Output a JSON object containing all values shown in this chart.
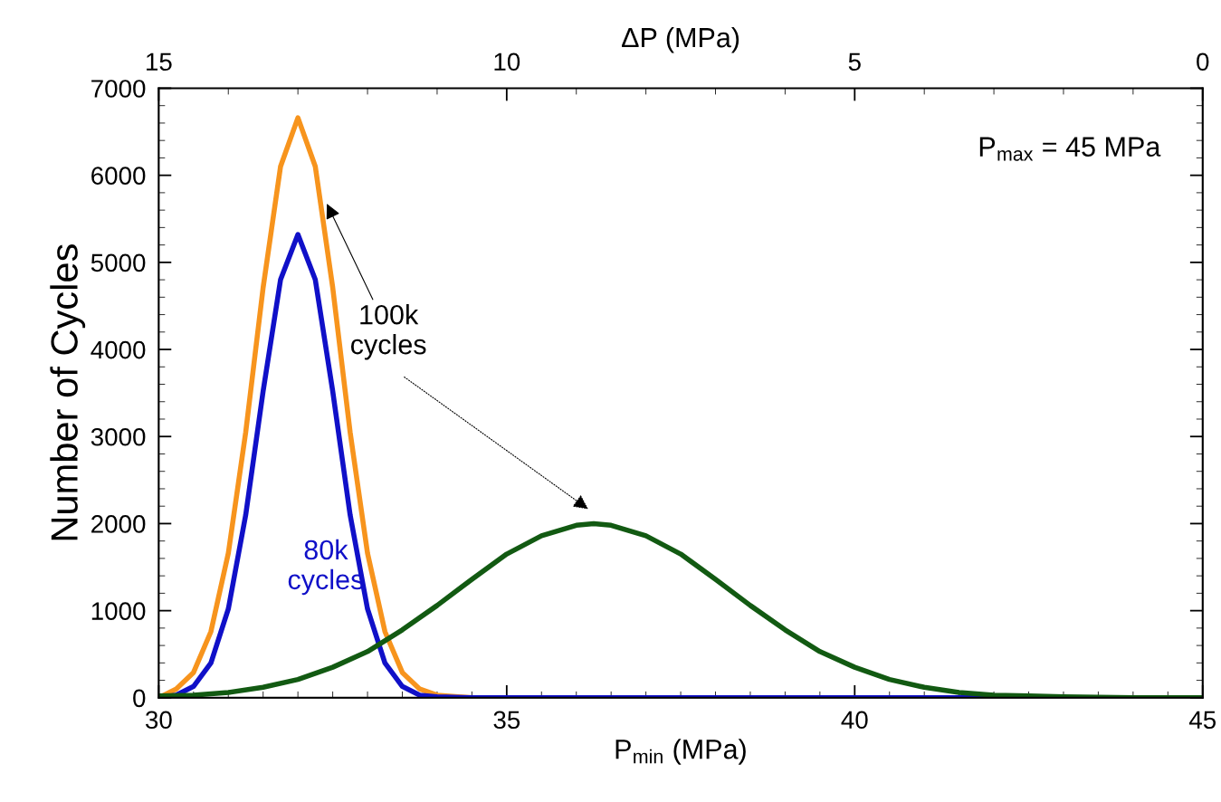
{
  "chart_data": {
    "type": "line",
    "xlabel": "P$_{min}$ (MPa)",
    "ylabel": "Number of Cycles",
    "x2label": "ΔP (MPa)",
    "xlim": [
      30,
      45
    ],
    "xticks": [
      30,
      35,
      40,
      45
    ],
    "ylim": [
      0,
      7000
    ],
    "yticks": [
      0,
      1000,
      2000,
      3000,
      4000,
      5000,
      6000,
      7000
    ],
    "x2lim": [
      15,
      0
    ],
    "x2ticks": [
      15,
      10,
      5,
      0
    ],
    "grid": false,
    "marker": "none",
    "line_style": "solid",
    "series": [
      {
        "color": "#f7941d",
        "x": [
          30,
          30.25,
          30.5,
          30.75,
          31,
          31.25,
          31.5,
          31.75,
          32,
          32.25,
          32.5,
          32.75,
          33,
          33.25,
          33.5,
          33.75,
          34,
          34.5,
          45
        ],
        "values": [
          0,
          100,
          290,
          760,
          1660,
          3050,
          4710,
          6100,
          6660,
          6100,
          4710,
          3050,
          1660,
          760,
          290,
          100,
          30,
          0,
          0
        ]
      },
      {
        "name": "80k\ncycles",
        "color": "#1010c8",
        "x": [
          30,
          30.25,
          30.5,
          30.75,
          31,
          31.25,
          31.5,
          31.75,
          32,
          32.25,
          32.5,
          32.75,
          33,
          33.25,
          33.5,
          33.75,
          34,
          34.5,
          45
        ],
        "values": [
          0,
          30,
          130,
          400,
          1020,
          2100,
          3520,
          4800,
          5320,
          4800,
          3520,
          2100,
          1020,
          400,
          130,
          30,
          10,
          0,
          0
        ]
      },
      {
        "color": "#125a12",
        "x": [
          30,
          30.5,
          31,
          31.5,
          32,
          32.5,
          33,
          33.5,
          34,
          34.5,
          35,
          35.5,
          36,
          36.25,
          36.5,
          37,
          37.5,
          38,
          38.5,
          39,
          39.5,
          40,
          40.5,
          41,
          41.5,
          42,
          42.5,
          43,
          44,
          45
        ],
        "values": [
          20,
          30,
          60,
          120,
          210,
          350,
          530,
          780,
          1060,
          1360,
          1650,
          1860,
          1980,
          2000,
          1980,
          1860,
          1650,
          1360,
          1060,
          780,
          530,
          350,
          210,
          120,
          60,
          30,
          20,
          10,
          0,
          0
        ]
      }
    ],
    "annotations": [
      "P$_{max}$ = 45 MPa",
      {
        "text": "100k\ncycles",
        "x": 32.4,
        "y": 5700
      }
    ]
  }
}
